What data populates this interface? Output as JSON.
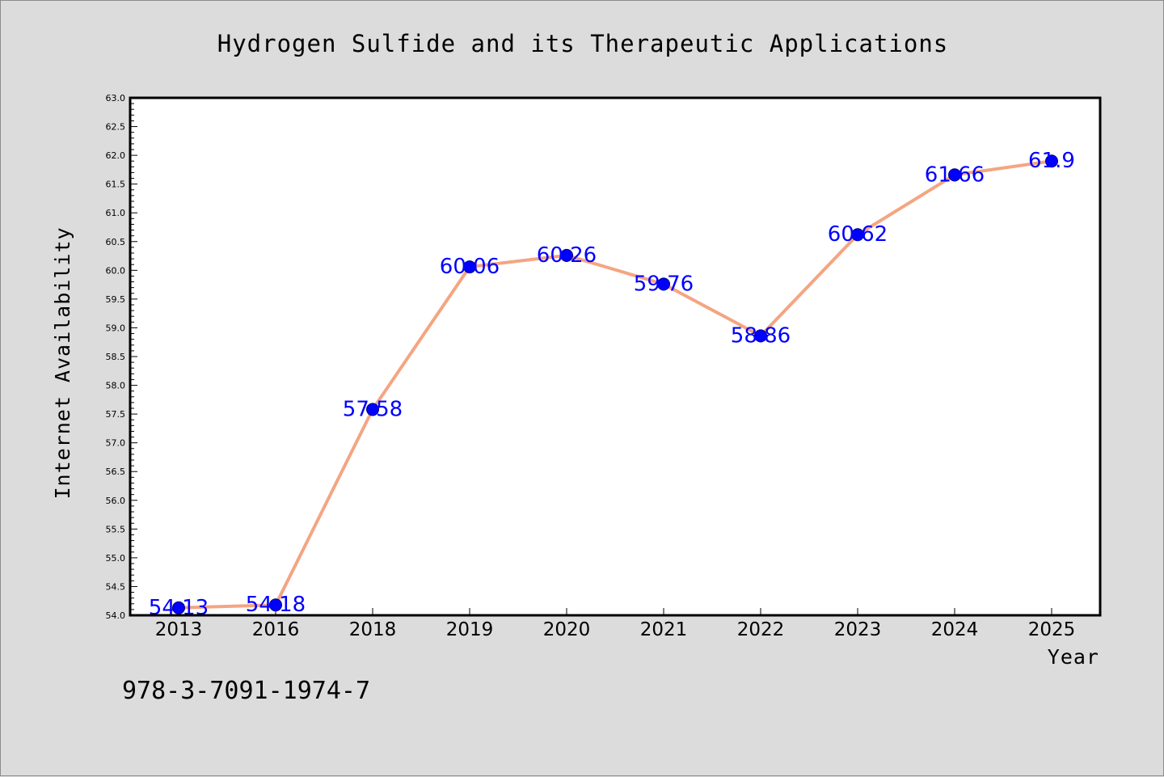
{
  "chart_data": {
    "type": "line",
    "title": "Hydrogen Sulfide and its Therapeutic Applications",
    "xlabel": "Year",
    "ylabel": "Internet Availability",
    "categories": [
      "2013",
      "2016",
      "2018",
      "2019",
      "2020",
      "2021",
      "2022",
      "2023",
      "2024",
      "2025"
    ],
    "series": [
      {
        "values": [
          54.13,
          54.18,
          57.58,
          60.06,
          60.26,
          59.76,
          58.86,
          60.62,
          61.66,
          61.9
        ],
        "data_labels": [
          "54.13",
          "54.18",
          "57.58",
          "60.06",
          "60.26",
          "59.76",
          "58.86",
          "60.62",
          "61.66",
          "61.9"
        ],
        "line_color": "#f4a582",
        "marker_color": "#0000ff"
      }
    ],
    "ylim": [
      54.0,
      63.0
    ],
    "y_ticks": [
      "54.0",
      "54.5",
      "55.0",
      "55.5",
      "56.0",
      "56.5",
      "57.0",
      "57.5",
      "58.0",
      "58.5",
      "59.0",
      "59.5",
      "60.0",
      "60.5",
      "61.0",
      "61.5",
      "62.0",
      "62.5",
      "63.0"
    ],
    "grid": false,
    "legend": "none",
    "background_color": "#dcdcdc",
    "plot_background_color": "#ffffff",
    "label_color": "#0000ff"
  },
  "footer": {
    "isbn": "978-3-7091-1974-7"
  }
}
